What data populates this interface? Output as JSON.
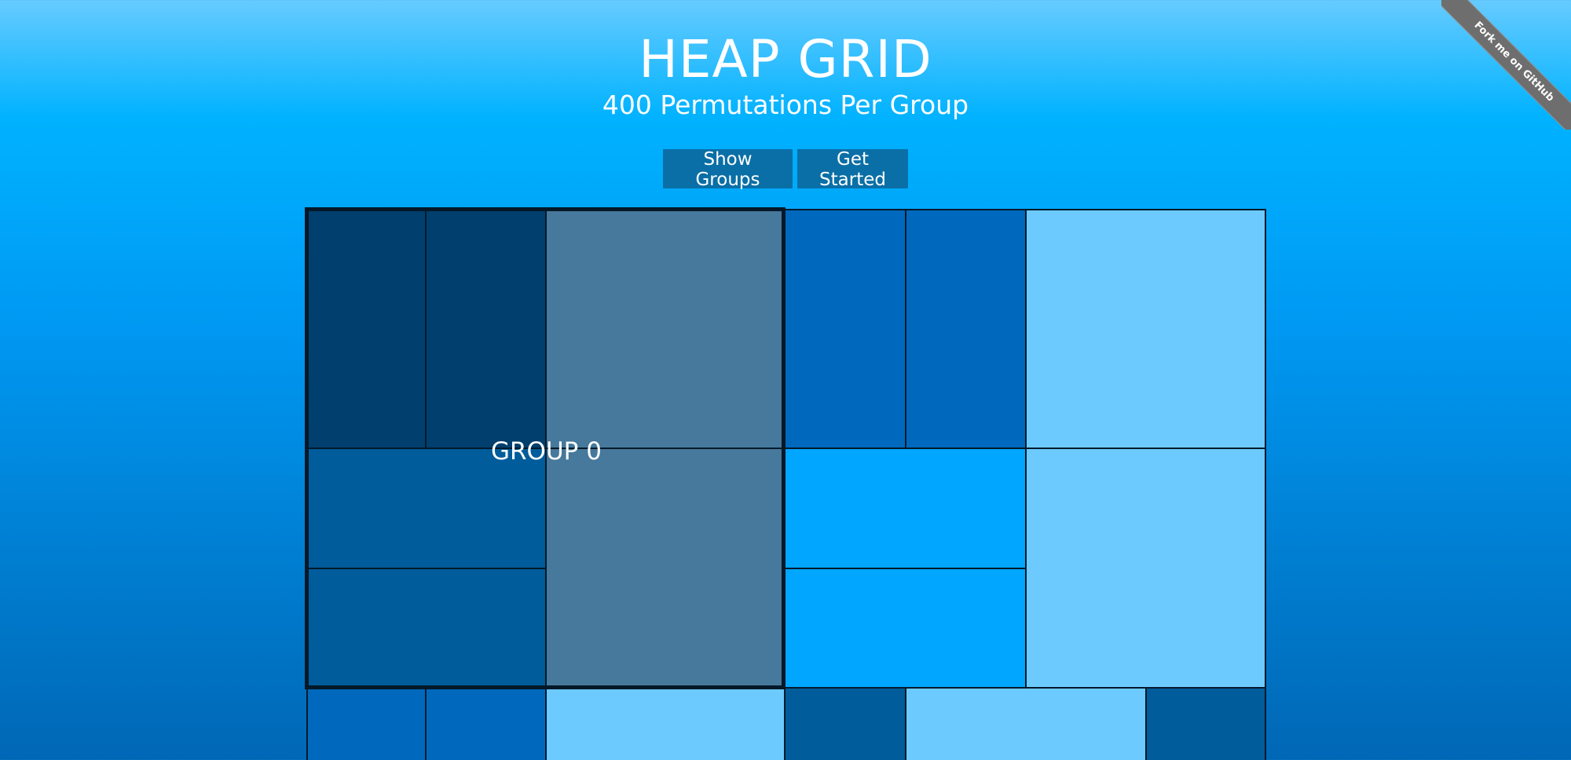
{
  "header": {
    "title": "HEAP GRID",
    "subtitle": "400 Permutations Per Group"
  },
  "buttons": {
    "show_groups": "Show Groups",
    "get_started": "Get Started"
  },
  "grid": {
    "group_label": "GROUP 0"
  },
  "ribbon": {
    "label": "Fork me on GitHub"
  },
  "colors": {
    "navy": "#003f6e",
    "dark_blue": "#005c9a",
    "slate": "#46799b",
    "medium_blue": "#0069bd",
    "bright_blue": "#00a6ff",
    "light_blue": "#6ccaff",
    "border": "#051a2b"
  }
}
